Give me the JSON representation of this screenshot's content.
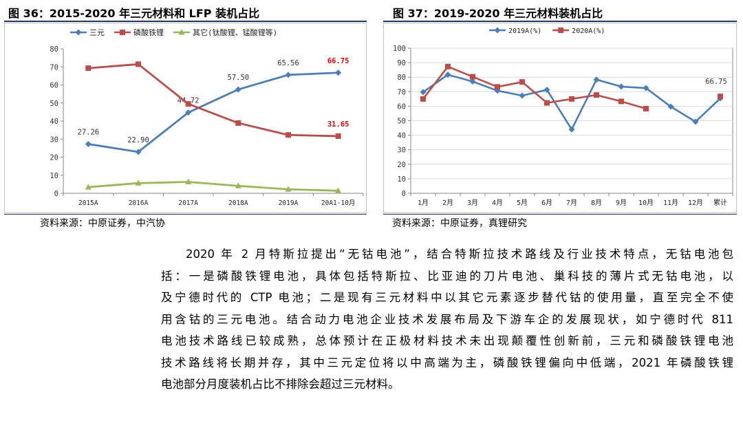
{
  "figure1": {
    "title": "图 36：2015-2020 年三元材料和 LFP 装机占比",
    "source": "资料来源：中原证券，中汽协"
  },
  "figure2": {
    "title": "图 37：2019-2020 年三元材料装机占比",
    "source": "资料来源：中原证券，真锂研究"
  },
  "body": {
    "lines": [
      "2020 年 2 月特斯拉提出“无钴电池”，结合特斯拉技术路线及行业技术特点，无钴电池包",
      "括：一是磷酸铁锂电池，具体包括特斯拉、比亚迪的刀片电池、巢科技的薄片式无钴电池，以",
      "及宁德时代的 CTP 电池；二是现有三元材料中以其它元素逐步替代钴的使用量，直至完全不使",
      "用含钴的三元电池。结合动力电池企业技术发展布局及下游车企的发展现状，如宁德时代 811",
      "电池技术路线已较成熟，总体预计在正极材料技术未出现颠覆性创新前，三元和磷酸铁锂电池",
      "技术路线将长期并存，其中三元定位将以中高端为主，磷酸铁锂偏向中低端，2021 年磷酸铁锂",
      "电池部分月度装机占比不排除会超过三元材料。"
    ]
  },
  "colors": {
    "blue": "#4a7ebb",
    "red": "#be4b48",
    "green": "#98b954",
    "highlight": "#ff0000",
    "rule": "#1f3864"
  },
  "chart_data": [
    {
      "type": "line",
      "title": "图 36：2015-2020 年三元材料和 LFP 装机占比",
      "categories": [
        "2015A",
        "2016A",
        "2017A",
        "2018A",
        "2019A",
        "20A1-10月"
      ],
      "ylim": [
        0,
        80
      ],
      "yticks": [
        0,
        10,
        20,
        30,
        40,
        50,
        60,
        70,
        80
      ],
      "legend_position": "top",
      "series": [
        {
          "name": "三元",
          "color": "#4a7ebb",
          "marker": "diamond",
          "values": [
            27.26,
            22.9,
            44.72,
            57.5,
            65.56,
            66.75
          ],
          "labels": [
            "27.26",
            "22.90",
            "44.72",
            "57.50",
            "65.56",
            "66.75"
          ],
          "label_colors": [
            "#333333",
            "#333333",
            "#333333",
            "#333333",
            "#333333",
            "#ff0000"
          ]
        },
        {
          "name": "磷酸铁锂",
          "color": "#be4b48",
          "marker": "square",
          "values": [
            69.3,
            71.5,
            49.5,
            38.9,
            32.3,
            31.65
          ],
          "labels": [
            "",
            "",
            "",
            "",
            "",
            "31.65"
          ],
          "label_colors": [
            "#333333",
            "#333333",
            "#333333",
            "#333333",
            "#333333",
            "#ff0000"
          ]
        },
        {
          "name": "其它(钛酸锂、锰酸锂等)",
          "color": "#98b954",
          "marker": "triangle",
          "values": [
            3.4,
            5.6,
            6.3,
            4.1,
            2.2,
            1.4
          ],
          "labels": [
            "",
            "",
            "",
            "",
            "",
            ""
          ],
          "label_colors": []
        }
      ]
    },
    {
      "type": "line",
      "title": "图 37：2019-2020 年三元材料装机占比",
      "categories": [
        "1月",
        "2月",
        "3月",
        "4月",
        "5月",
        "6月",
        "7月",
        "8月",
        "9月",
        "10月",
        "11月",
        "12月",
        "累计"
      ],
      "ylim": [
        0,
        100
      ],
      "yticks": [
        0,
        10,
        20,
        30,
        40,
        50,
        60,
        70,
        80,
        90,
        100
      ],
      "legend_position": "top",
      "annotation": "66.75",
      "series": [
        {
          "name": "2019A(%)",
          "color": "#4a7ebb",
          "marker": "diamond",
          "values": [
            69.7,
            81.7,
            77.0,
            70.7,
            67.3,
            71.3,
            44.0,
            78.3,
            73.5,
            72.5,
            59.7,
            49.3,
            65.4
          ]
        },
        {
          "name": "2020A(%)",
          "color": "#be4b48",
          "marker": "square",
          "values": [
            65.0,
            87.3,
            80.3,
            73.3,
            76.7,
            62.3,
            65.0,
            67.7,
            63.3,
            58.3,
            null,
            null,
            66.75
          ]
        }
      ]
    }
  ]
}
